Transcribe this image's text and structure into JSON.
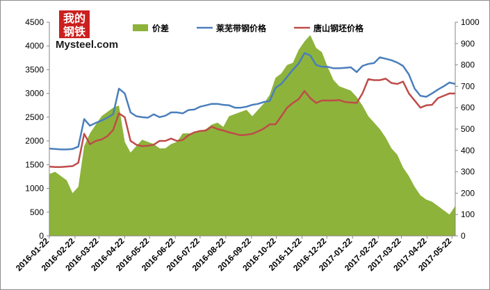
{
  "logo": {
    "cn": [
      "我的",
      "钢铁"
    ],
    "en": "Mysteel.com"
  },
  "colors": {
    "area": "#8db33b",
    "laiwu": "#4a7ebb",
    "tangshan": "#be4b48",
    "grid": "#bfbfbf",
    "logo_red": "#cc1f1f"
  },
  "chart_data": {
    "type": "line",
    "x": [
      "2016-01-22",
      "2016-01-29",
      "2016-02-05",
      "2016-02-12",
      "2016-02-19",
      "2016-02-26",
      "2016-03-04",
      "2016-03-11",
      "2016-03-18",
      "2016-03-25",
      "2016-04-01",
      "2016-04-08",
      "2016-04-15",
      "2016-04-22",
      "2016-04-29",
      "2016-05-06",
      "2016-05-13",
      "2016-05-20",
      "2016-05-27",
      "2016-06-03",
      "2016-06-10",
      "2016-06-17",
      "2016-06-24",
      "2016-07-01",
      "2016-07-08",
      "2016-07-15",
      "2016-07-22",
      "2016-07-29",
      "2016-08-05",
      "2016-08-12",
      "2016-08-19",
      "2016-08-26",
      "2016-09-02",
      "2016-09-09",
      "2016-09-16",
      "2016-09-23",
      "2016-09-30",
      "2016-10-07",
      "2016-10-14",
      "2016-10-21",
      "2016-10-28",
      "2016-11-04",
      "2016-11-11",
      "2016-11-18",
      "2016-11-25",
      "2016-12-02",
      "2016-12-09",
      "2016-12-16",
      "2016-12-23",
      "2016-12-30",
      "2017-01-06",
      "2017-01-13",
      "2017-01-20",
      "2017-01-27",
      "2017-02-03",
      "2017-02-10",
      "2017-02-17",
      "2017-02-24",
      "2017-03-03",
      "2017-03-10",
      "2017-03-17",
      "2017-03-24",
      "2017-03-31",
      "2017-04-07",
      "2017-04-14",
      "2017-04-21",
      "2017-04-28",
      "2017-05-05",
      "2017-05-12",
      "2017-05-19",
      "2017-05-26"
    ],
    "x_tick_labels": [
      "2016-01-22",
      "2016-02-22",
      "2016-03-22",
      "2016-04-22",
      "2016-05-22",
      "2016-06-22",
      "2016-07-22",
      "2016-08-22",
      "2016-09-22",
      "2016-10-22",
      "2016-11-22",
      "2016-12-22",
      "2017-01-22",
      "2017-02-22",
      "2017-03-22",
      "2017-04-22",
      "2017-05-22"
    ],
    "series": [
      {
        "name": "价差",
        "type": "area",
        "axis": "right",
        "values": [
          290,
          300,
          280,
          260,
          200,
          230,
          420,
          480,
          520,
          560,
          580,
          600,
          610,
          440,
          390,
          420,
          450,
          440,
          430,
          410,
          410,
          430,
          440,
          480,
          480,
          480,
          490,
          500,
          520,
          530,
          510,
          560,
          570,
          580,
          590,
          560,
          590,
          620,
          660,
          740,
          760,
          800,
          810,
          870,
          910,
          940,
          880,
          860,
          790,
          730,
          700,
          690,
          680,
          650,
          610,
          560,
          530,
          500,
          460,
          410,
          380,
          320,
          280,
          230,
          190,
          170,
          160,
          140,
          120,
          100,
          140
        ]
      },
      {
        "name": "莱芜带钢价格",
        "type": "line",
        "axis": "left",
        "values": [
          1840,
          1830,
          1820,
          1820,
          1830,
          1880,
          2460,
          2320,
          2380,
          2430,
          2490,
          2560,
          3100,
          3000,
          2600,
          2520,
          2500,
          2490,
          2560,
          2500,
          2530,
          2600,
          2600,
          2580,
          2650,
          2660,
          2720,
          2750,
          2780,
          2780,
          2760,
          2750,
          2700,
          2700,
          2720,
          2760,
          2780,
          2820,
          2840,
          3120,
          3200,
          3350,
          3500,
          3630,
          3850,
          3800,
          3600,
          3560,
          3560,
          3530,
          3530,
          3540,
          3550,
          3450,
          3580,
          3620,
          3640,
          3760,
          3730,
          3700,
          3650,
          3580,
          3400,
          3100,
          2950,
          2930,
          3000,
          3080,
          3150,
          3230,
          3200
        ]
      },
      {
        "name": "唐山钢坯价格",
        "type": "line",
        "axis": "left",
        "values": [
          1460,
          1450,
          1450,
          1460,
          1470,
          1540,
          2150,
          1930,
          2000,
          2030,
          2100,
          2230,
          2580,
          2500,
          2000,
          1920,
          1890,
          1900,
          1920,
          2000,
          2000,
          2050,
          2000,
          2020,
          2120,
          2180,
          2210,
          2220,
          2300,
          2250,
          2220,
          2180,
          2150,
          2120,
          2130,
          2150,
          2200,
          2260,
          2350,
          2350,
          2520,
          2700,
          2800,
          2880,
          3050,
          2900,
          2800,
          2850,
          2850,
          2850,
          2860,
          2820,
          2810,
          2800,
          3000,
          3300,
          3280,
          3280,
          3310,
          3220,
          3200,
          3250,
          3000,
          2850,
          2700,
          2750,
          2760,
          2900,
          2950,
          3000,
          3000
        ]
      }
    ],
    "y_left": {
      "min": 0,
      "max": 4500,
      "step": 500
    },
    "y_right": {
      "min": 0,
      "max": 1000,
      "step": 100
    },
    "legend_position": "top",
    "grid": false
  }
}
